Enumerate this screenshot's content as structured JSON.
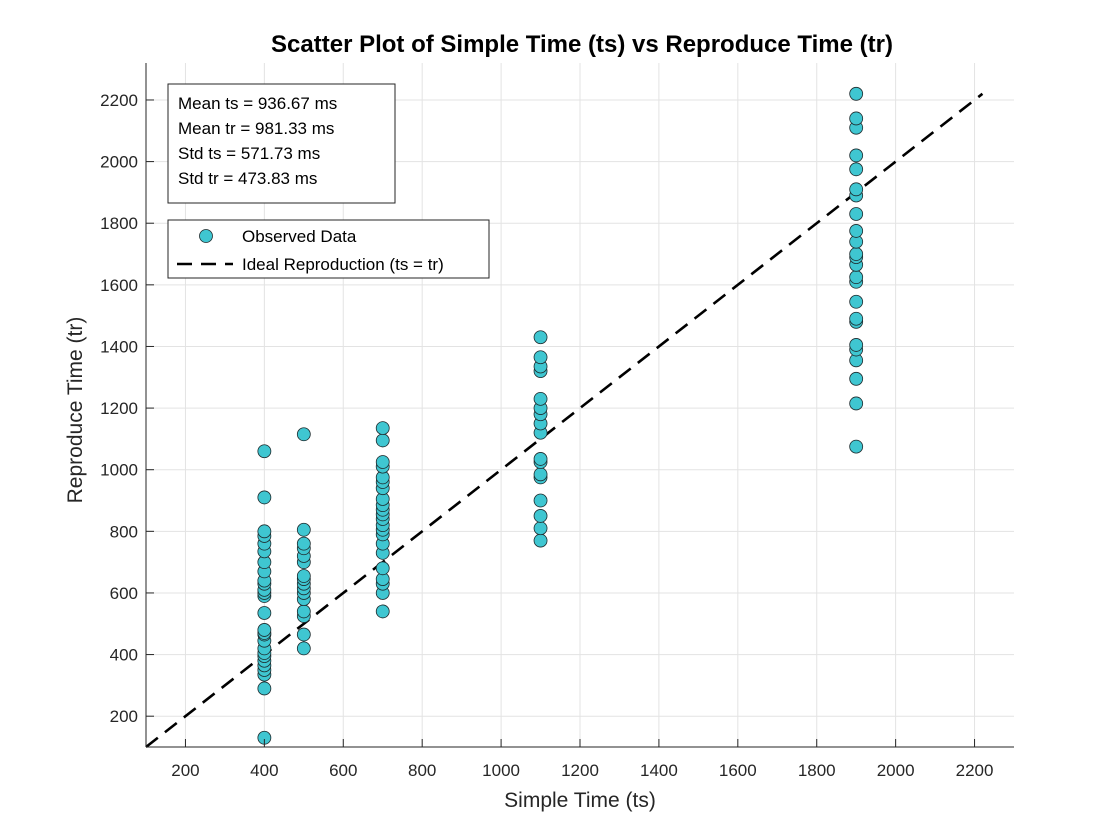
{
  "chart_data": {
    "type": "scatter",
    "title": "Scatter Plot of Simple Time (ts) vs Reproduce Time (tr)",
    "xlabel": "Simple Time (ts)",
    "ylabel": "Reproduce Time (tr)",
    "xlim": [
      100,
      2300
    ],
    "ylim": [
      100,
      2320
    ],
    "xticks": [
      200,
      400,
      600,
      800,
      1000,
      1200,
      1400,
      1600,
      1800,
      2000,
      2200
    ],
    "yticks": [
      200,
      400,
      600,
      800,
      1000,
      1200,
      1400,
      1600,
      1800,
      2000,
      2200
    ],
    "grid": true,
    "legend_position": "top-left",
    "stats": [
      "Mean ts = 936.67 ms",
      "Mean tr = 981.33 ms",
      "Std ts = 571.73 ms",
      "Std tr = 473.83 ms"
    ],
    "colors": {
      "marker": "#3fc6d1",
      "marker_edge": "#1e2b2e",
      "ideal_line": "#000000"
    },
    "series": [
      {
        "name": "Observed Data",
        "kind": "scatter",
        "points": [
          [
            400,
            130
          ],
          [
            400,
            290
          ],
          [
            400,
            335
          ],
          [
            400,
            350
          ],
          [
            400,
            365
          ],
          [
            400,
            380
          ],
          [
            400,
            395
          ],
          [
            400,
            405
          ],
          [
            400,
            420
          ],
          [
            400,
            445
          ],
          [
            400,
            465
          ],
          [
            400,
            470
          ],
          [
            400,
            480
          ],
          [
            400,
            535
          ],
          [
            400,
            590
          ],
          [
            400,
            600
          ],
          [
            400,
            610
          ],
          [
            400,
            630
          ],
          [
            400,
            640
          ],
          [
            400,
            670
          ],
          [
            400,
            700
          ],
          [
            400,
            735
          ],
          [
            400,
            760
          ],
          [
            400,
            785
          ],
          [
            400,
            800
          ],
          [
            400,
            910
          ],
          [
            400,
            1060
          ],
          [
            500,
            420
          ],
          [
            500,
            465
          ],
          [
            500,
            525
          ],
          [
            500,
            540
          ],
          [
            500,
            580
          ],
          [
            500,
            600
          ],
          [
            500,
            615
          ],
          [
            500,
            630
          ],
          [
            500,
            645
          ],
          [
            500,
            655
          ],
          [
            500,
            700
          ],
          [
            500,
            720
          ],
          [
            500,
            745
          ],
          [
            500,
            760
          ],
          [
            500,
            805
          ],
          [
            500,
            1115
          ],
          [
            700,
            540
          ],
          [
            700,
            600
          ],
          [
            700,
            630
          ],
          [
            700,
            645
          ],
          [
            700,
            680
          ],
          [
            700,
            730
          ],
          [
            700,
            760
          ],
          [
            700,
            790
          ],
          [
            700,
            805
          ],
          [
            700,
            820
          ],
          [
            700,
            840
          ],
          [
            700,
            855
          ],
          [
            700,
            870
          ],
          [
            700,
            885
          ],
          [
            700,
            905
          ],
          [
            700,
            940
          ],
          [
            700,
            960
          ],
          [
            700,
            975
          ],
          [
            700,
            1010
          ],
          [
            700,
            1025
          ],
          [
            700,
            1095
          ],
          [
            700,
            1135
          ],
          [
            1100,
            770
          ],
          [
            1100,
            810
          ],
          [
            1100,
            850
          ],
          [
            1100,
            900
          ],
          [
            1100,
            975
          ],
          [
            1100,
            985
          ],
          [
            1100,
            1025
          ],
          [
            1100,
            1035
          ],
          [
            1100,
            1120
          ],
          [
            1100,
            1150
          ],
          [
            1100,
            1180
          ],
          [
            1100,
            1200
          ],
          [
            1100,
            1230
          ],
          [
            1100,
            1320
          ],
          [
            1100,
            1335
          ],
          [
            1100,
            1365
          ],
          [
            1100,
            1430
          ],
          [
            1900,
            1075
          ],
          [
            1900,
            1215
          ],
          [
            1900,
            1295
          ],
          [
            1900,
            1355
          ],
          [
            1900,
            1390
          ],
          [
            1900,
            1405
          ],
          [
            1900,
            1480
          ],
          [
            1900,
            1490
          ],
          [
            1900,
            1545
          ],
          [
            1900,
            1610
          ],
          [
            1900,
            1625
          ],
          [
            1900,
            1665
          ],
          [
            1900,
            1690
          ],
          [
            1900,
            1700
          ],
          [
            1900,
            1740
          ],
          [
            1900,
            1775
          ],
          [
            1900,
            1830
          ],
          [
            1900,
            1890
          ],
          [
            1900,
            1910
          ],
          [
            1900,
            1975
          ],
          [
            1900,
            2020
          ],
          [
            1900,
            2110
          ],
          [
            1900,
            2140
          ],
          [
            1900,
            2220
          ]
        ]
      },
      {
        "name": "Ideal Reproduction (ts = tr)",
        "kind": "line",
        "points": [
          [
            100,
            100
          ],
          [
            2220,
            2220
          ]
        ]
      }
    ]
  }
}
